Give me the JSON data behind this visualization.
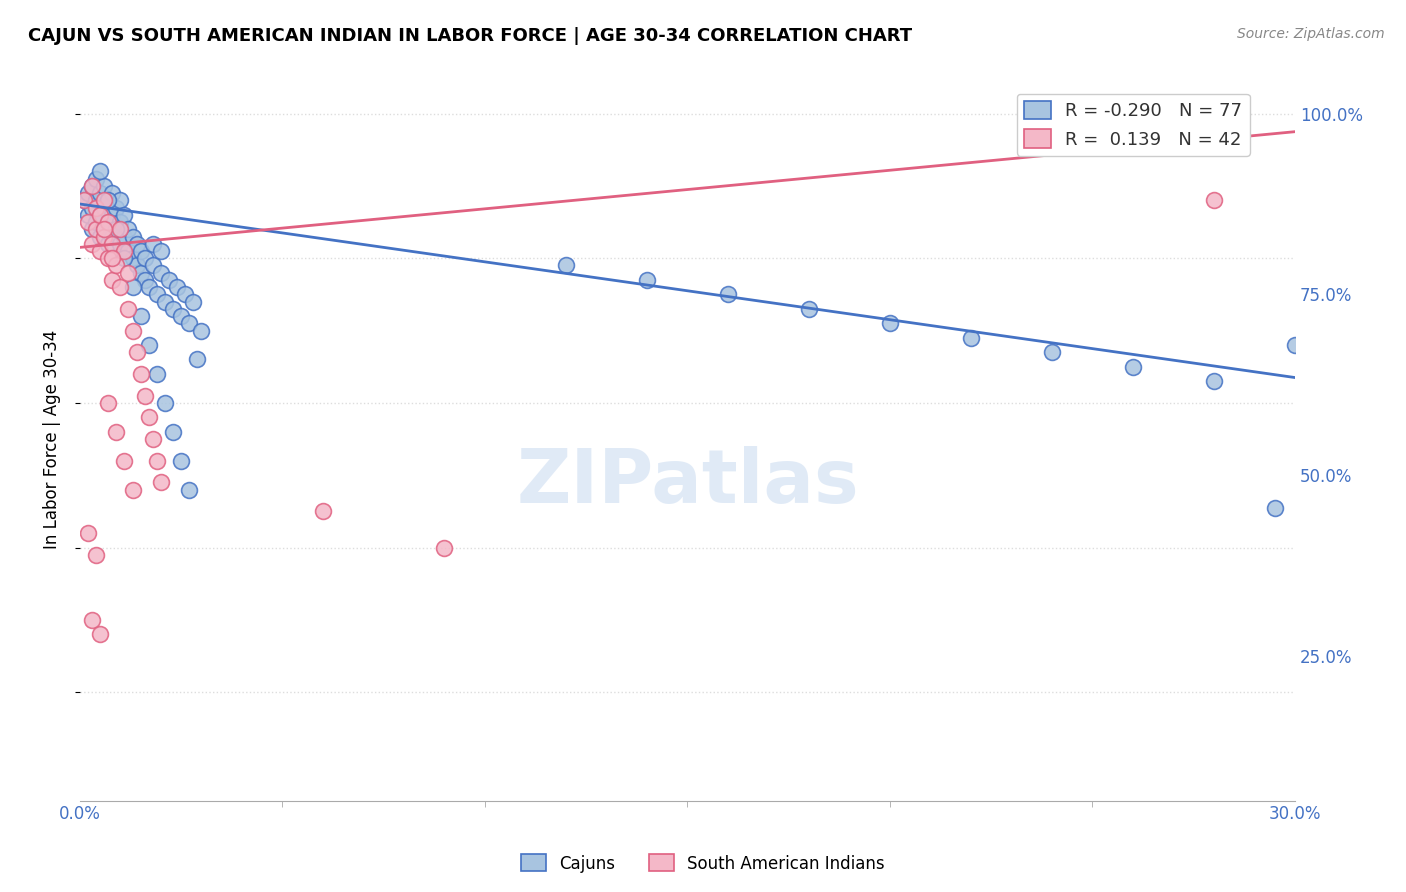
{
  "title": "CAJUN VS SOUTH AMERICAN INDIAN IN LABOR FORCE | AGE 30-34 CORRELATION CHART",
  "source": "Source: ZipAtlas.com",
  "ylabel": "In Labor Force | Age 30-34",
  "xlim": [
    0.0,
    0.3
  ],
  "ylim": [
    0.05,
    1.05
  ],
  "yticks": [
    0.25,
    0.5,
    0.75,
    1.0
  ],
  "ytick_labels": [
    "25.0%",
    "50.0%",
    "75.0%",
    "100.0%"
  ],
  "cajun_R": -0.29,
  "cajun_N": 77,
  "sai_R": 0.139,
  "sai_N": 42,
  "cajun_color": "#a8c4e0",
  "sai_color": "#f4b8c8",
  "cajun_line_color": "#4472c4",
  "sai_line_color": "#e06080",
  "background_color": "#ffffff",
  "grid_color": "#dddddd",
  "cajun_line_y": [
    0.875,
    0.635
  ],
  "sai_line_y": [
    0.815,
    0.975
  ],
  "cajun_x": [
    0.001,
    0.002,
    0.002,
    0.003,
    0.003,
    0.003,
    0.004,
    0.004,
    0.004,
    0.005,
    0.005,
    0.005,
    0.006,
    0.006,
    0.006,
    0.007,
    0.007,
    0.007,
    0.008,
    0.008,
    0.008,
    0.009,
    0.009,
    0.01,
    0.01,
    0.01,
    0.011,
    0.011,
    0.012,
    0.012,
    0.013,
    0.013,
    0.014,
    0.014,
    0.015,
    0.015,
    0.016,
    0.016,
    0.017,
    0.018,
    0.018,
    0.019,
    0.02,
    0.02,
    0.021,
    0.022,
    0.023,
    0.024,
    0.025,
    0.026,
    0.027,
    0.028,
    0.03,
    0.005,
    0.007,
    0.009,
    0.011,
    0.013,
    0.015,
    0.017,
    0.019,
    0.021,
    0.023,
    0.025,
    0.027,
    0.029,
    0.12,
    0.14,
    0.16,
    0.18,
    0.2,
    0.22,
    0.24,
    0.26,
    0.28,
    0.295,
    0.3
  ],
  "cajun_y": [
    0.88,
    0.86,
    0.89,
    0.87,
    0.9,
    0.84,
    0.85,
    0.88,
    0.91,
    0.86,
    0.89,
    0.83,
    0.84,
    0.87,
    0.9,
    0.85,
    0.88,
    0.82,
    0.83,
    0.86,
    0.89,
    0.84,
    0.87,
    0.82,
    0.85,
    0.88,
    0.83,
    0.86,
    0.81,
    0.84,
    0.8,
    0.83,
    0.79,
    0.82,
    0.78,
    0.81,
    0.77,
    0.8,
    0.76,
    0.79,
    0.82,
    0.75,
    0.78,
    0.81,
    0.74,
    0.77,
    0.73,
    0.76,
    0.72,
    0.75,
    0.71,
    0.74,
    0.7,
    0.92,
    0.88,
    0.84,
    0.8,
    0.76,
    0.72,
    0.68,
    0.64,
    0.6,
    0.56,
    0.52,
    0.48,
    0.66,
    0.79,
    0.77,
    0.75,
    0.73,
    0.71,
    0.69,
    0.67,
    0.65,
    0.63,
    0.455,
    0.68
  ],
  "sai_x": [
    0.001,
    0.002,
    0.003,
    0.003,
    0.004,
    0.004,
    0.005,
    0.005,
    0.006,
    0.006,
    0.007,
    0.007,
    0.008,
    0.008,
    0.009,
    0.01,
    0.01,
    0.011,
    0.012,
    0.012,
    0.013,
    0.014,
    0.015,
    0.016,
    0.017,
    0.018,
    0.019,
    0.02,
    0.002,
    0.004,
    0.006,
    0.008,
    0.003,
    0.005,
    0.007,
    0.009,
    0.011,
    0.013,
    0.06,
    0.09,
    0.27,
    0.28
  ],
  "sai_y": [
    0.88,
    0.85,
    0.82,
    0.9,
    0.87,
    0.84,
    0.81,
    0.86,
    0.83,
    0.88,
    0.85,
    0.8,
    0.77,
    0.82,
    0.79,
    0.76,
    0.84,
    0.81,
    0.78,
    0.73,
    0.7,
    0.67,
    0.64,
    0.61,
    0.58,
    0.55,
    0.52,
    0.49,
    0.42,
    0.39,
    0.84,
    0.8,
    0.3,
    0.28,
    0.6,
    0.56,
    0.52,
    0.48,
    0.45,
    0.4,
    0.98,
    0.88
  ]
}
